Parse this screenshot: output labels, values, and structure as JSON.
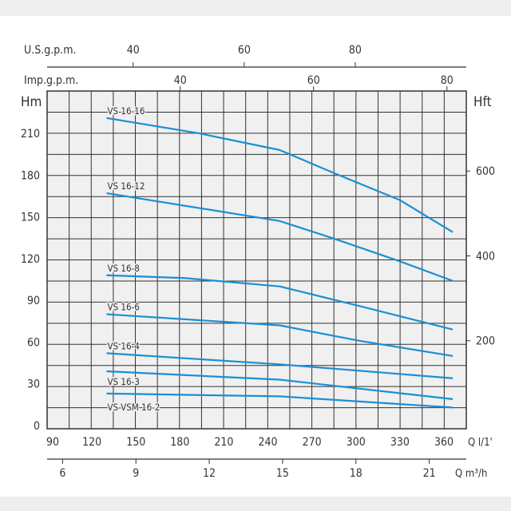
{
  "chart_data": {
    "type": "line",
    "title": "",
    "xlabel": "Q l/1'",
    "ylabel": "Hm",
    "y2label": "Hft",
    "x_top1_label": "U.S.g.p.m.",
    "x_top2_label": "Imp.g.p.m.",
    "x_bottom2_label": "Q m³/h",
    "xlim": [
      90,
      375
    ],
    "ylim": [
      0,
      240
    ],
    "grid": true,
    "x_ticks": [
      90,
      120,
      150,
      180,
      210,
      240,
      270,
      300,
      330,
      360
    ],
    "y_ticks": [
      0,
      30,
      60,
      90,
      120,
      150,
      180,
      210
    ],
    "y2_ticks": [
      200,
      400,
      600
    ],
    "us_gpm_ticks": [
      40,
      60,
      80
    ],
    "imp_gpm_ticks": [
      40,
      60,
      80
    ],
    "m3h_ticks": [
      6,
      9,
      12,
      15,
      18,
      21
    ],
    "line_color": "#1a8fd6",
    "series": [
      {
        "name": "VS 16-16",
        "x": [
          130,
          193,
          248,
          286,
          330,
          366
        ],
        "y": [
          221,
          210,
          198,
          181,
          162,
          139
        ]
      },
      {
        "name": "VS 16-12",
        "x": [
          130,
          248,
          286,
          330,
          366
        ],
        "y": [
          167,
          147,
          134,
          118,
          104
        ]
      },
      {
        "name": "VS 16-8",
        "x": [
          130,
          183,
          248,
          302,
          366
        ],
        "y": [
          108,
          106,
          100,
          86,
          69
        ]
      },
      {
        "name": "VS 16-6",
        "x": [
          130,
          248,
          302,
          366
        ],
        "y": [
          80,
          72,
          61,
          50
        ]
      },
      {
        "name": "VS 16-4",
        "x": [
          130,
          248,
          366
        ],
        "y": [
          52,
          44,
          34
        ]
      },
      {
        "name": "VS 16-3",
        "x": [
          130,
          248,
          366
        ],
        "y": [
          39,
          33,
          19
        ]
      },
      {
        "name": "VS-VSM 16-2",
        "x": [
          130,
          248,
          366
        ],
        "y": [
          23,
          21,
          13
        ]
      }
    ]
  }
}
